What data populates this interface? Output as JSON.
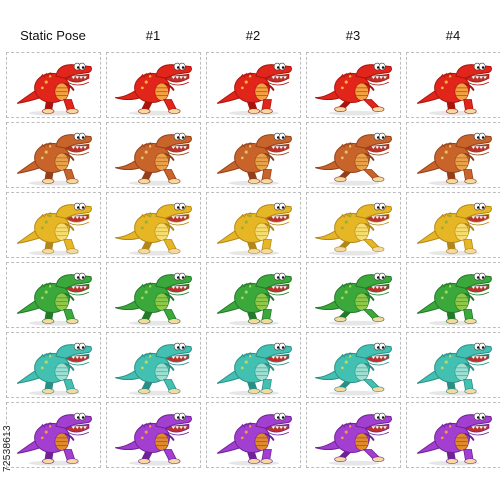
{
  "headers": [
    "Static Pose",
    "#1",
    "#2",
    "#3",
    "#4"
  ],
  "watermark": "72538613",
  "rows": [
    {
      "color": "red",
      "body": "#e1251b",
      "shade": "#a8140c",
      "belly": "#f4a142",
      "spot": "#f6b53a"
    },
    {
      "color": "orange",
      "body": "#c8642a",
      "shade": "#93401a",
      "belly": "#e9a24a",
      "spot": "#e0c06a"
    },
    {
      "color": "yellow",
      "body": "#e6b624",
      "shade": "#b2861a",
      "belly": "#f6dd6e",
      "spot": "#8fb33a"
    },
    {
      "color": "green",
      "body": "#3aa83a",
      "shade": "#23782a",
      "belly": "#8fc94a",
      "spot": "#a7d25a"
    },
    {
      "color": "teal",
      "body": "#42c1b3",
      "shade": "#2b8e84",
      "belly": "#9be0d0",
      "spot": "#c9d84a"
    },
    {
      "color": "purple",
      "body": "#a23ed0",
      "shade": "#6f2196",
      "belly": "#e08a2a",
      "spot": "#f09a3a"
    }
  ]
}
